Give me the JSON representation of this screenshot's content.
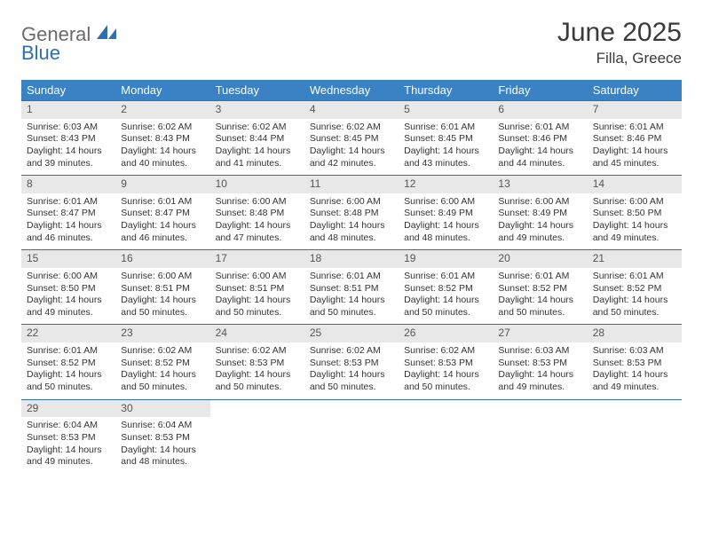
{
  "brand": {
    "general": "General",
    "blue": "Blue"
  },
  "title": {
    "month": "June 2025",
    "location": "Filla, Greece"
  },
  "colors": {
    "header_bg": "#3b82c4",
    "header_text": "#ffffff",
    "row_border": "#2f6fad",
    "daynum_bg": "#e8e8e8",
    "text": "#333333",
    "logo_gray": "#6b6b6b",
    "logo_blue": "#2f6fad"
  },
  "weekdays": [
    "Sunday",
    "Monday",
    "Tuesday",
    "Wednesday",
    "Thursday",
    "Friday",
    "Saturday"
  ],
  "days": [
    {
      "n": "1",
      "sunrise": "Sunrise: 6:03 AM",
      "sunset": "Sunset: 8:43 PM",
      "d1": "Daylight: 14 hours",
      "d2": "and 39 minutes."
    },
    {
      "n": "2",
      "sunrise": "Sunrise: 6:02 AM",
      "sunset": "Sunset: 8:43 PM",
      "d1": "Daylight: 14 hours",
      "d2": "and 40 minutes."
    },
    {
      "n": "3",
      "sunrise": "Sunrise: 6:02 AM",
      "sunset": "Sunset: 8:44 PM",
      "d1": "Daylight: 14 hours",
      "d2": "and 41 minutes."
    },
    {
      "n": "4",
      "sunrise": "Sunrise: 6:02 AM",
      "sunset": "Sunset: 8:45 PM",
      "d1": "Daylight: 14 hours",
      "d2": "and 42 minutes."
    },
    {
      "n": "5",
      "sunrise": "Sunrise: 6:01 AM",
      "sunset": "Sunset: 8:45 PM",
      "d1": "Daylight: 14 hours",
      "d2": "and 43 minutes."
    },
    {
      "n": "6",
      "sunrise": "Sunrise: 6:01 AM",
      "sunset": "Sunset: 8:46 PM",
      "d1": "Daylight: 14 hours",
      "d2": "and 44 minutes."
    },
    {
      "n": "7",
      "sunrise": "Sunrise: 6:01 AM",
      "sunset": "Sunset: 8:46 PM",
      "d1": "Daylight: 14 hours",
      "d2": "and 45 minutes."
    },
    {
      "n": "8",
      "sunrise": "Sunrise: 6:01 AM",
      "sunset": "Sunset: 8:47 PM",
      "d1": "Daylight: 14 hours",
      "d2": "and 46 minutes."
    },
    {
      "n": "9",
      "sunrise": "Sunrise: 6:01 AM",
      "sunset": "Sunset: 8:47 PM",
      "d1": "Daylight: 14 hours",
      "d2": "and 46 minutes."
    },
    {
      "n": "10",
      "sunrise": "Sunrise: 6:00 AM",
      "sunset": "Sunset: 8:48 PM",
      "d1": "Daylight: 14 hours",
      "d2": "and 47 minutes."
    },
    {
      "n": "11",
      "sunrise": "Sunrise: 6:00 AM",
      "sunset": "Sunset: 8:48 PM",
      "d1": "Daylight: 14 hours",
      "d2": "and 48 minutes."
    },
    {
      "n": "12",
      "sunrise": "Sunrise: 6:00 AM",
      "sunset": "Sunset: 8:49 PM",
      "d1": "Daylight: 14 hours",
      "d2": "and 48 minutes."
    },
    {
      "n": "13",
      "sunrise": "Sunrise: 6:00 AM",
      "sunset": "Sunset: 8:49 PM",
      "d1": "Daylight: 14 hours",
      "d2": "and 49 minutes."
    },
    {
      "n": "14",
      "sunrise": "Sunrise: 6:00 AM",
      "sunset": "Sunset: 8:50 PM",
      "d1": "Daylight: 14 hours",
      "d2": "and 49 minutes."
    },
    {
      "n": "15",
      "sunrise": "Sunrise: 6:00 AM",
      "sunset": "Sunset: 8:50 PM",
      "d1": "Daylight: 14 hours",
      "d2": "and 49 minutes."
    },
    {
      "n": "16",
      "sunrise": "Sunrise: 6:00 AM",
      "sunset": "Sunset: 8:51 PM",
      "d1": "Daylight: 14 hours",
      "d2": "and 50 minutes."
    },
    {
      "n": "17",
      "sunrise": "Sunrise: 6:00 AM",
      "sunset": "Sunset: 8:51 PM",
      "d1": "Daylight: 14 hours",
      "d2": "and 50 minutes."
    },
    {
      "n": "18",
      "sunrise": "Sunrise: 6:01 AM",
      "sunset": "Sunset: 8:51 PM",
      "d1": "Daylight: 14 hours",
      "d2": "and 50 minutes."
    },
    {
      "n": "19",
      "sunrise": "Sunrise: 6:01 AM",
      "sunset": "Sunset: 8:52 PM",
      "d1": "Daylight: 14 hours",
      "d2": "and 50 minutes."
    },
    {
      "n": "20",
      "sunrise": "Sunrise: 6:01 AM",
      "sunset": "Sunset: 8:52 PM",
      "d1": "Daylight: 14 hours",
      "d2": "and 50 minutes."
    },
    {
      "n": "21",
      "sunrise": "Sunrise: 6:01 AM",
      "sunset": "Sunset: 8:52 PM",
      "d1": "Daylight: 14 hours",
      "d2": "and 50 minutes."
    },
    {
      "n": "22",
      "sunrise": "Sunrise: 6:01 AM",
      "sunset": "Sunset: 8:52 PM",
      "d1": "Daylight: 14 hours",
      "d2": "and 50 minutes."
    },
    {
      "n": "23",
      "sunrise": "Sunrise: 6:02 AM",
      "sunset": "Sunset: 8:52 PM",
      "d1": "Daylight: 14 hours",
      "d2": "and 50 minutes."
    },
    {
      "n": "24",
      "sunrise": "Sunrise: 6:02 AM",
      "sunset": "Sunset: 8:53 PM",
      "d1": "Daylight: 14 hours",
      "d2": "and 50 minutes."
    },
    {
      "n": "25",
      "sunrise": "Sunrise: 6:02 AM",
      "sunset": "Sunset: 8:53 PM",
      "d1": "Daylight: 14 hours",
      "d2": "and 50 minutes."
    },
    {
      "n": "26",
      "sunrise": "Sunrise: 6:02 AM",
      "sunset": "Sunset: 8:53 PM",
      "d1": "Daylight: 14 hours",
      "d2": "and 50 minutes."
    },
    {
      "n": "27",
      "sunrise": "Sunrise: 6:03 AM",
      "sunset": "Sunset: 8:53 PM",
      "d1": "Daylight: 14 hours",
      "d2": "and 49 minutes."
    },
    {
      "n": "28",
      "sunrise": "Sunrise: 6:03 AM",
      "sunset": "Sunset: 8:53 PM",
      "d1": "Daylight: 14 hours",
      "d2": "and 49 minutes."
    },
    {
      "n": "29",
      "sunrise": "Sunrise: 6:04 AM",
      "sunset": "Sunset: 8:53 PM",
      "d1": "Daylight: 14 hours",
      "d2": "and 49 minutes."
    },
    {
      "n": "30",
      "sunrise": "Sunrise: 6:04 AM",
      "sunset": "Sunset: 8:53 PM",
      "d1": "Daylight: 14 hours",
      "d2": "and 48 minutes."
    }
  ]
}
